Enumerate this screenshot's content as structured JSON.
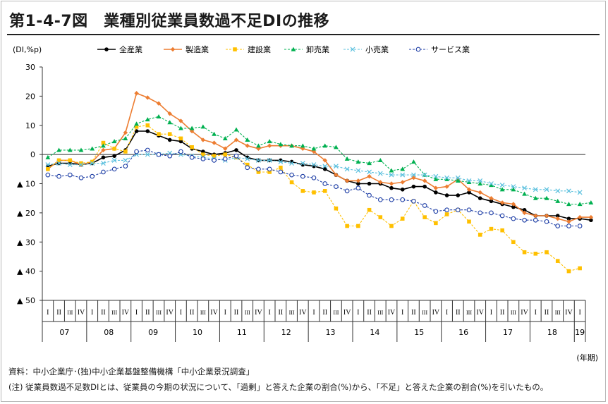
{
  "title": "第1-4-7図　業種別従業員数過不足DIの推移",
  "footer": {
    "source": "資料：中小企業庁･(独)中小企業基盤整備機構「中小企業景況調査」",
    "note": "(注) 従業員数過不足数DIとは、従業員の今期の状況について、「過剰」と答えた企業の割合(%)から、「不足」と答えた企業の割合(%)を引いたもの。"
  },
  "chart_data": {
    "type": "line",
    "ylabel": "(DI,%p)",
    "xlabel": "(年期)",
    "ylim": [
      -50,
      30
    ],
    "yticks": [
      30,
      20,
      10,
      0,
      -10,
      -20,
      -30,
      -40,
      -50
    ],
    "ytick_labels": [
      "30",
      "20",
      "10",
      "0",
      "▲ 10",
      "▲ 20",
      "▲ 30",
      "▲ 40",
      "▲ 50"
    ],
    "quarter_labels": [
      "I",
      "II",
      "III",
      "IV"
    ],
    "years": [
      "07",
      "08",
      "09",
      "10",
      "11",
      "12",
      "13",
      "14",
      "15",
      "16",
      "17",
      "18",
      "19"
    ],
    "legend_position": "top",
    "grid": false,
    "series": [
      {
        "name": "全産業",
        "color": "#000000",
        "marker": "dot",
        "dash": "solid",
        "values": [
          -4,
          -3,
          -3,
          -3.5,
          -3,
          -1,
          -0.5,
          1.5,
          8,
          8,
          6.5,
          5,
          4.5,
          2,
          1,
          0,
          0.5,
          1.5,
          -1,
          -2,
          -2,
          -2,
          -2.5,
          -3.5,
          -4,
          -5,
          -7,
          -9,
          -10,
          -10,
          -10,
          -11.5,
          -12,
          -11,
          -11,
          -13,
          -14,
          -14,
          -13,
          -15,
          -16,
          -17,
          -18,
          -19,
          -21,
          -21,
          -21,
          -22,
          -22,
          -22.5
        ]
      },
      {
        "name": "製造業",
        "color": "#ed7d31",
        "marker": "diamond",
        "dash": "solid",
        "values": [
          -5,
          -2,
          -2,
          -3.5,
          -2.5,
          1.5,
          2,
          7.5,
          21,
          19.5,
          17.5,
          14,
          11.5,
          8,
          5,
          4,
          2,
          5,
          3,
          2,
          3,
          3,
          3,
          2,
          1,
          -2,
          -7,
          -9,
          -9,
          -7.5,
          -9.5,
          -10,
          -9.5,
          -8,
          -9,
          -11.5,
          -11,
          -8.5,
          -12,
          -13,
          -15,
          -16.5,
          -17,
          -20,
          -21,
          -21,
          -22,
          -23,
          -21.5,
          -21.5
        ]
      },
      {
        "name": "建設業",
        "color": "#ffc000",
        "marker": "square",
        "dash": "dashed",
        "values": [
          -5,
          -2,
          -2,
          -3,
          -2.5,
          4,
          2,
          1,
          9.5,
          10,
          7,
          7,
          5.5,
          2.5,
          0,
          -0.5,
          0,
          -1,
          -3.5,
          -6,
          -6,
          -4.5,
          -9.5,
          -12.5,
          -13,
          -12.5,
          -18.5,
          -24.5,
          -24.5,
          -19,
          -21.5,
          -24.5,
          -22,
          -16,
          -21.5,
          -23.5,
          -20.5,
          -19,
          -23,
          -27.5,
          -25.5,
          -26,
          -30,
          -33.5,
          -34,
          -33.5,
          -36.5,
          -40,
          -39
        ]
      },
      {
        "name": "卸売業",
        "color": "#00b050",
        "marker": "triangle",
        "dash": "dashed",
        "values": [
          -1,
          1.5,
          1.5,
          1.5,
          2,
          3,
          4.5,
          5.5,
          10.5,
          12,
          13,
          11,
          9,
          9,
          9.5,
          7,
          5.5,
          8.5,
          5,
          3,
          4.5,
          3.5,
          3,
          3,
          2,
          3,
          2.5,
          -1.5,
          -2.5,
          -3,
          -2,
          -5.5,
          -5,
          -2.5,
          -7,
          -8.5,
          -8.5,
          -9,
          -9.5,
          -10,
          -10.5,
          -12,
          -12,
          -13.5,
          -15,
          -15,
          -16,
          -17,
          -17,
          -16.5
        ]
      },
      {
        "name": "小売業",
        "color": "#5bc0de",
        "marker": "cross",
        "dash": "dashed",
        "values": [
          -3.5,
          -3,
          -3.5,
          -3.5,
          -3,
          -3,
          -2,
          -2,
          0,
          0,
          0,
          0.5,
          0,
          -0.5,
          -1,
          -1.5,
          -2,
          -1,
          -1.5,
          -2,
          -2,
          -2.5,
          -3,
          -3,
          -3.5,
          -4,
          -4,
          -5,
          -5.5,
          -6,
          -6.5,
          -7,
          -7,
          -7,
          -7,
          -7.5,
          -8,
          -8,
          -9,
          -9,
          -10,
          -10.5,
          -11,
          -11.5,
          -12,
          -12,
          -12.5,
          -12.5,
          -13
        ]
      },
      {
        "name": "サービス業",
        "color": "#1f3fa6",
        "marker": "circle",
        "dash": "dashed",
        "values": [
          -7,
          -7.5,
          -7,
          -8,
          -7.5,
          -6,
          -5,
          -4,
          1,
          1.5,
          0,
          -0.5,
          1,
          -1,
          -1.5,
          -2,
          -1.5,
          -0.5,
          -4.5,
          -5,
          -5,
          -6,
          -7,
          -7.5,
          -8,
          -10,
          -11,
          -12.5,
          -11.5,
          -14,
          -15.5,
          -15.5,
          -15.5,
          -16,
          -17.5,
          -19.5,
          -19,
          -19,
          -19,
          -20,
          -20,
          -21,
          -22,
          -22.5,
          -22.5,
          -23,
          -24.5,
          -24.5,
          -24.5
        ]
      }
    ]
  }
}
